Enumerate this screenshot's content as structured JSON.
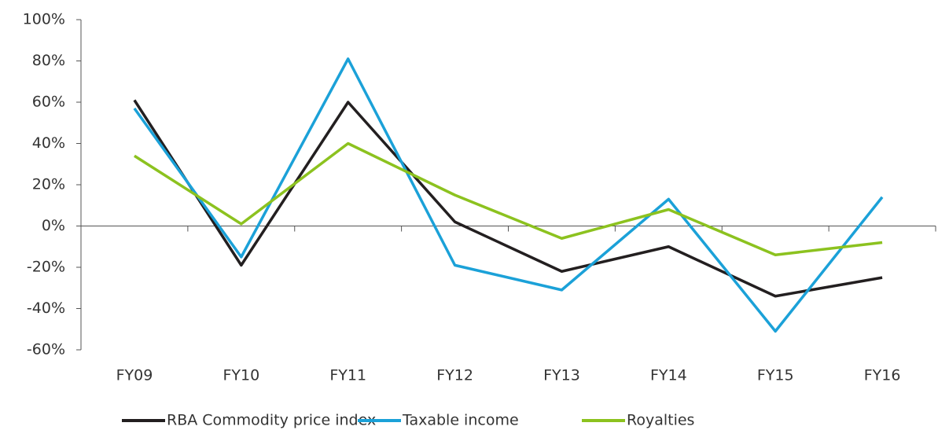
{
  "chart_data": {
    "type": "line",
    "categories": [
      "FY09",
      "FY10",
      "FY11",
      "FY12",
      "FY13",
      "FY14",
      "FY15",
      "FY16"
    ],
    "series": [
      {
        "name": "RBA Commodity price index",
        "color": "#231f20",
        "values": [
          61,
          -19,
          60,
          2,
          -22,
          -10,
          -34,
          -25
        ]
      },
      {
        "name": "Taxable income",
        "color": "#1ba1d8",
        "values": [
          57,
          -15,
          81,
          -19,
          -31,
          13,
          -51,
          14
        ]
      },
      {
        "name": "Royalties",
        "color": "#8cc21f",
        "values": [
          34,
          1,
          40,
          15,
          -6,
          8,
          -14,
          -8
        ]
      }
    ],
    "ylim": [
      -60,
      100
    ],
    "yticks": [
      {
        "value": -60,
        "label": "-60%"
      },
      {
        "value": -40,
        "label": "-40%"
      },
      {
        "value": -20,
        "label": "-20%"
      },
      {
        "value": 0,
        "label": "0%"
      },
      {
        "value": 20,
        "label": "20%"
      },
      {
        "value": 40,
        "label": "40%"
      },
      {
        "value": 60,
        "label": "60%"
      },
      {
        "value": 80,
        "label": "80%"
      },
      {
        "value": 100,
        "label": "100%"
      }
    ],
    "grid": false,
    "legend": "bottom"
  }
}
